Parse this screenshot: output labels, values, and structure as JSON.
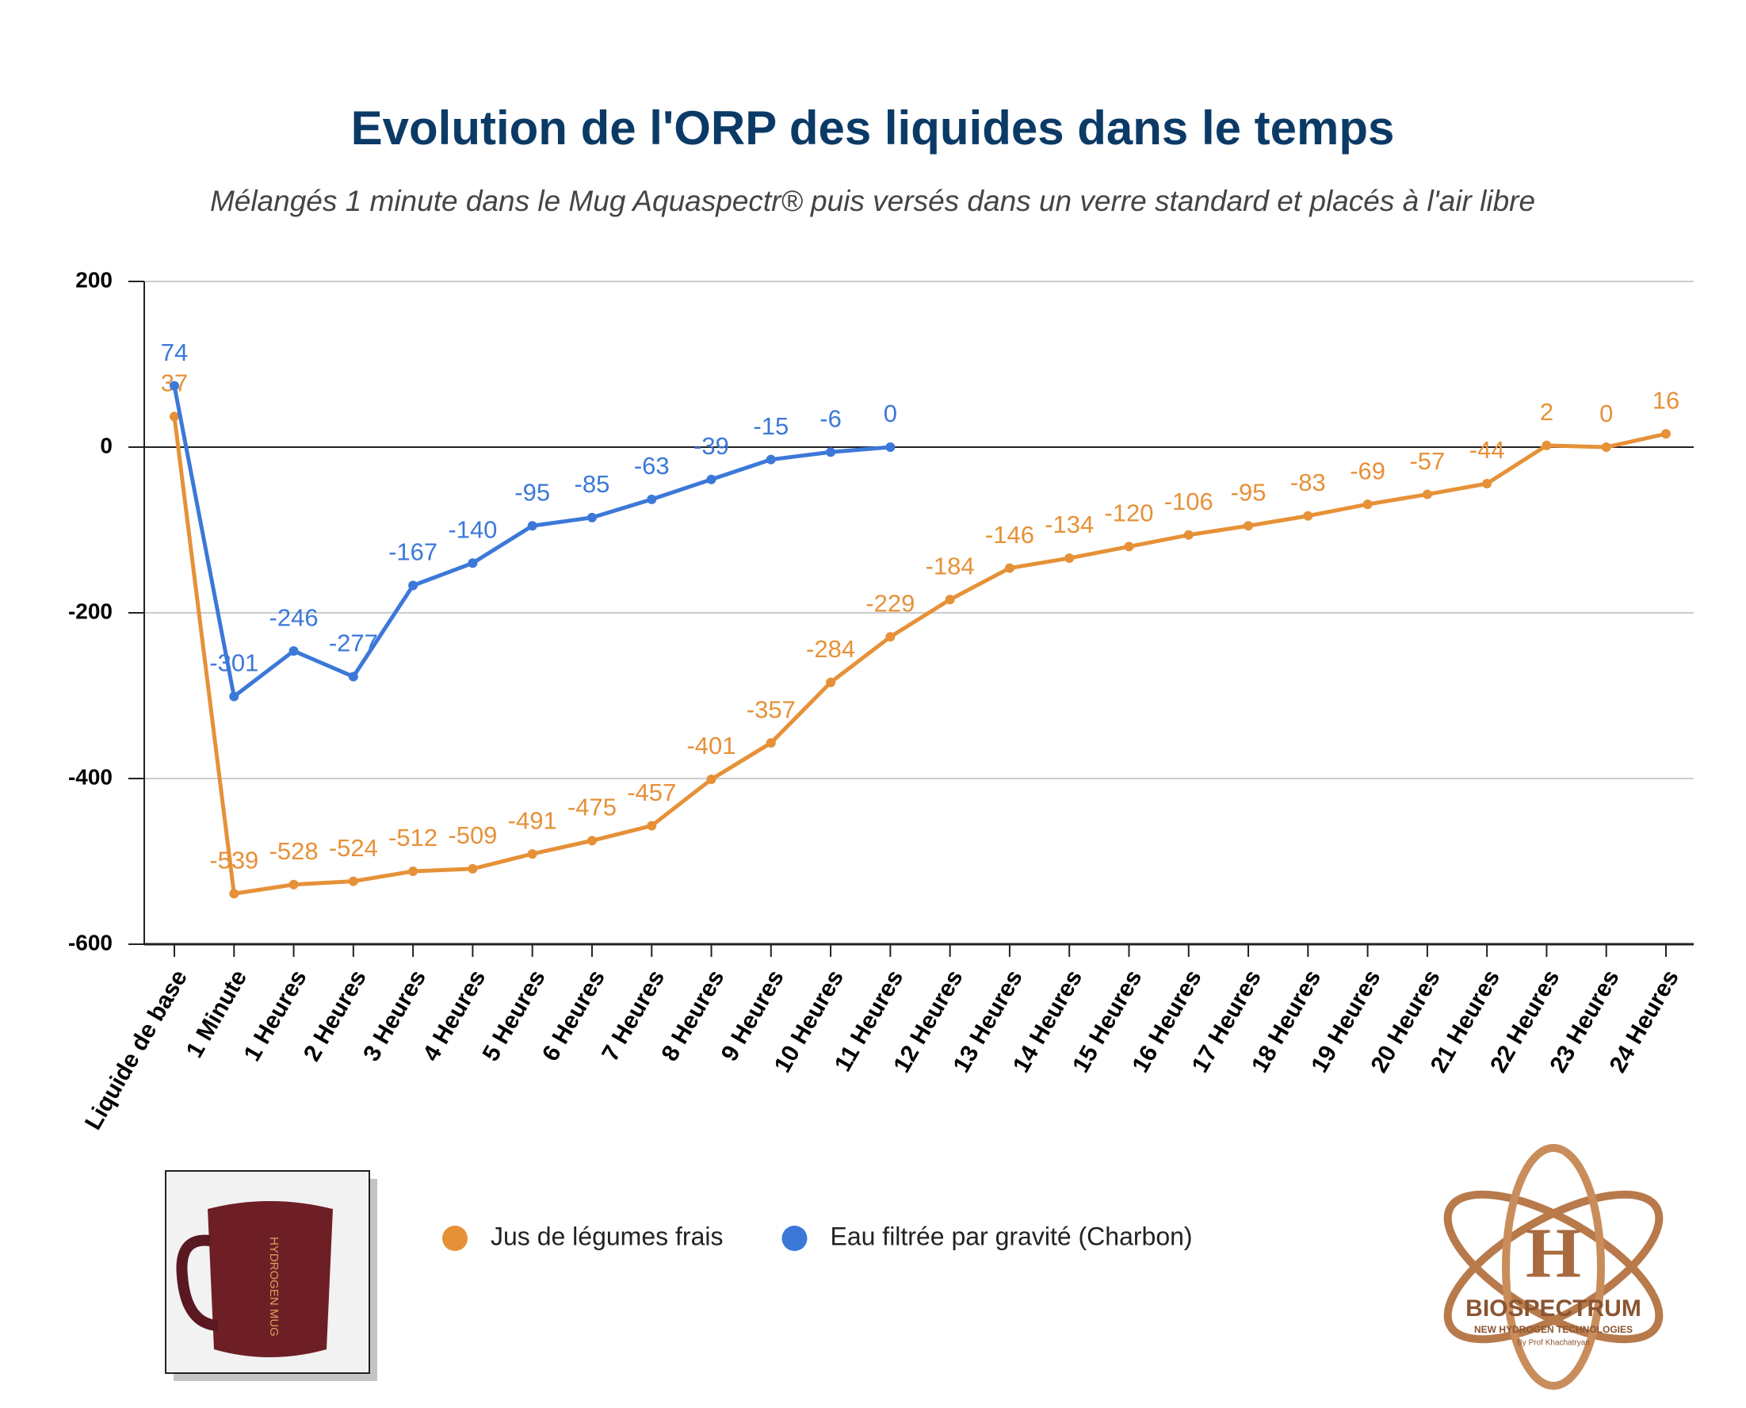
{
  "chart_data": {
    "type": "line",
    "title": "Evolution de l'ORP des liquides dans le temps",
    "subtitle": "Mélangés 1 minute dans le Mug Aquaspectr® puis versés dans un verre standard et placés à l'air libre",
    "categories": [
      "Liquide de base",
      "1 Minute",
      "1 Heures",
      "2 Heures",
      "3 Heures",
      "4 Heures",
      "5 Heures",
      "6 Heures",
      "7 Heures",
      "8 Heures",
      "9 Heures",
      "10 Heures",
      "11 Heures",
      "12 Heures",
      "13 Heures",
      "14 Heures",
      "15 Heures",
      "16 Heures",
      "17 Heures",
      "18 Heures",
      "19 Heures",
      "20 Heures",
      "21 Heures",
      "22 Heures",
      "23 Heures",
      "24 Heures"
    ],
    "series": [
      {
        "name": "Jus de légumes frais",
        "color": "#e69138",
        "values": [
          37,
          -539,
          -528,
          -524,
          -512,
          -509,
          -491,
          -475,
          -457,
          -401,
          -357,
          -284,
          -229,
          -184,
          -146,
          -134,
          -120,
          -106,
          -95,
          -83,
          -69,
          -57,
          -44,
          2,
          0,
          16
        ]
      },
      {
        "name": "Eau filtrée par gravité (Charbon)",
        "color": "#3c78d8",
        "values": [
          74,
          -301,
          -246,
          -277,
          -167,
          -140,
          -95,
          -85,
          -63,
          -39,
          -15,
          -6,
          0,
          null,
          null,
          null,
          null,
          null,
          null,
          null,
          null,
          null,
          null,
          null,
          null,
          null
        ]
      }
    ],
    "ylim": [
      -600,
      200
    ],
    "yticks": [
      -600,
      -400,
      -200,
      0,
      200
    ],
    "grid": true,
    "legend": "bottom"
  },
  "images": {
    "mug_text": "HYDROGEN MUG",
    "logo_letter": "H",
    "logo_name": "BIOSPECTRUM",
    "logo_tagline": "NEW HYDROGEN TECHNOLOGIES",
    "logo_author": "By Prof Khachatryan"
  }
}
